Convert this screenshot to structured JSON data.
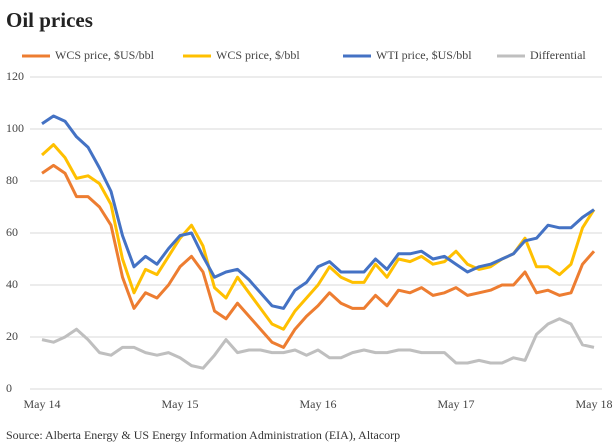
{
  "chart_data": {
    "type": "line",
    "title": "Oil prices",
    "source": "Source: Alberta Energy & US Energy Information Administration (EIA), Altacorp",
    "categories": [
      "May 14",
      null,
      null,
      null,
      null,
      null,
      null,
      null,
      null,
      null,
      null,
      null,
      "May 15",
      null,
      null,
      null,
      null,
      null,
      null,
      null,
      null,
      null,
      null,
      null,
      "May 16",
      null,
      null,
      null,
      null,
      null,
      null,
      null,
      null,
      null,
      null,
      null,
      "May 17",
      null,
      null,
      null,
      null,
      null,
      null,
      null,
      null,
      null,
      null,
      null,
      "May 18"
    ],
    "series": [
      {
        "name": "WCS price, $US/bbl",
        "color": "#ed7d31",
        "values": [
          83,
          86,
          83,
          74,
          74,
          70,
          63,
          43,
          31,
          37,
          35,
          40,
          47,
          51,
          45,
          30,
          27,
          33,
          28,
          23,
          18,
          16,
          23,
          28,
          32,
          37,
          33,
          31,
          31,
          36,
          32,
          38,
          37,
          39,
          36,
          37,
          39,
          36,
          37,
          38,
          40,
          40,
          45,
          37,
          38,
          36,
          37,
          48,
          53
        ]
      },
      {
        "name": "WCS price, $/bbl",
        "color": "#ffc000",
        "values": [
          90,
          94,
          89,
          81,
          82,
          79,
          71,
          50,
          37,
          46,
          44,
          51,
          58,
          63,
          55,
          39,
          35,
          43,
          37,
          31,
          25,
          23,
          30,
          35,
          40,
          47,
          43,
          41,
          41,
          48,
          43,
          50,
          49,
          51,
          48,
          49,
          53,
          48,
          46,
          47,
          50,
          52,
          58,
          47,
          47,
          44,
          48,
          62,
          69
        ]
      },
      {
        "name": "WTI price, $US/bbl",
        "color": "#4472c4",
        "values": [
          102,
          105,
          103,
          97,
          93,
          85,
          76,
          59,
          47,
          51,
          48,
          54,
          59,
          60,
          51,
          43,
          45,
          46,
          42,
          37,
          32,
          31,
          38,
          41,
          47,
          49,
          45,
          45,
          45,
          50,
          46,
          52,
          52,
          53,
          50,
          51,
          48,
          45,
          47,
          48,
          50,
          52,
          57,
          58,
          63,
          62,
          62,
          66,
          69
        ]
      },
      {
        "name": "Differential",
        "color": "#bfbfbf",
        "values": [
          19,
          18,
          20,
          23,
          19,
          14,
          13,
          16,
          16,
          14,
          13,
          14,
          12,
          9,
          8,
          13,
          19,
          14,
          15,
          15,
          14,
          14,
          15,
          13,
          15,
          12,
          12,
          14,
          15,
          14,
          14,
          15,
          15,
          14,
          14,
          14,
          10,
          10,
          11,
          10,
          10,
          12,
          11,
          21,
          25,
          27,
          25,
          17,
          16
        ]
      }
    ],
    "ylim": [
      0,
      120
    ],
    "yticks": [
      0,
      20,
      40,
      60,
      80,
      100,
      120
    ],
    "grid": true
  }
}
